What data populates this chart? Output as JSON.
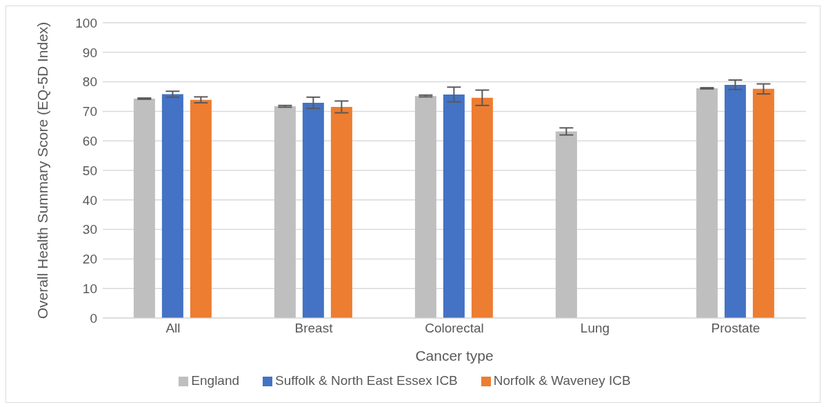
{
  "chart_data": {
    "type": "bar",
    "xlabel": "Cancer type",
    "ylabel": "Overall Health Summary Score (EQ-5D Index)",
    "categories": [
      "All",
      "Breast",
      "Colorectal",
      "Lung",
      "Prostate"
    ],
    "series": [
      {
        "name": "England",
        "color": "#bfbfbf",
        "values": [
          74.3,
          71.7,
          75.2,
          63.2,
          77.8
        ],
        "errors": [
          0.2,
          0.3,
          0.3,
          1.2,
          0.2
        ]
      },
      {
        "name": "Suffolk & North East Essex ICB",
        "color": "#4472c4",
        "values": [
          75.8,
          72.9,
          75.7,
          null,
          79.0
        ],
        "errors": [
          1.0,
          1.9,
          2.5,
          null,
          1.6
        ]
      },
      {
        "name": "Norfolk & Waveney ICB",
        "color": "#ed7d31",
        "values": [
          73.9,
          71.5,
          74.6,
          null,
          77.6
        ],
        "errors": [
          1.0,
          2.0,
          2.6,
          null,
          1.7
        ]
      }
    ],
    "ylim": [
      0,
      100
    ],
    "yticks": [
      0,
      10,
      20,
      30,
      40,
      50,
      60,
      70,
      80,
      90,
      100
    ],
    "grid": "y",
    "legend": "bottom"
  }
}
